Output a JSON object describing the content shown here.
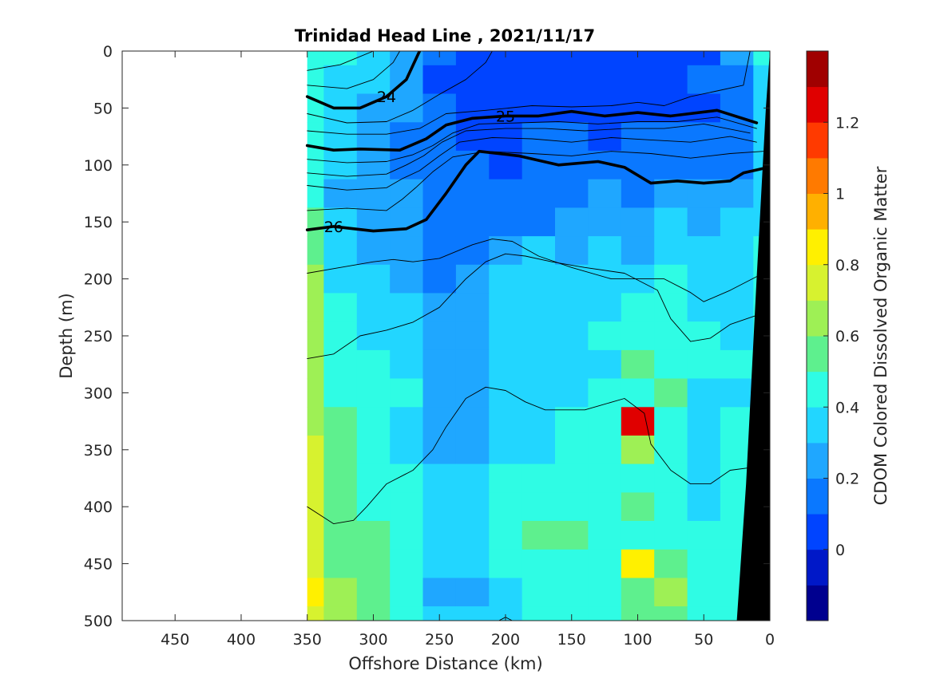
{
  "chart_data": {
    "type": "heatmap",
    "title": "Trinidad Head Line , 2021/11/17",
    "xlabel": "Offshore Distance (km)",
    "ylabel": "Depth (m)",
    "colorbar_label": "CDOM Colored Dissolved Organic Matter",
    "x_reversed": true,
    "y_reversed": true,
    "xlim": [
      0,
      490
    ],
    "ylim": [
      0,
      500
    ],
    "x_ticks": [
      {
        "value": 450,
        "label": "450"
      },
      {
        "value": 400,
        "label": "400"
      },
      {
        "value": 350,
        "label": "350"
      },
      {
        "value": 300,
        "label": "300"
      },
      {
        "value": 250,
        "label": "250"
      },
      {
        "value": 200,
        "label": "200"
      },
      {
        "value": 150,
        "label": "150"
      },
      {
        "value": 100,
        "label": "100"
      },
      {
        "value": 50,
        "label": "50"
      },
      {
        "value": 0,
        "label": "0"
      }
    ],
    "y_ticks": [
      {
        "value": 0,
        "label": "0"
      },
      {
        "value": 50,
        "label": "50"
      },
      {
        "value": 100,
        "label": "100"
      },
      {
        "value": 150,
        "label": "150"
      },
      {
        "value": 200,
        "label": "200"
      },
      {
        "value": 250,
        "label": "250"
      },
      {
        "value": 300,
        "label": "300"
      },
      {
        "value": 350,
        "label": "350"
      },
      {
        "value": 400,
        "label": "400"
      },
      {
        "value": 450,
        "label": "450"
      },
      {
        "value": 500,
        "label": "500"
      }
    ],
    "colorbar_range": [
      -0.2,
      1.4
    ],
    "colorbar_ticks": [
      {
        "value": 0,
        "label": "0"
      },
      {
        "value": 0.2,
        "label": "0.2"
      },
      {
        "value": 0.4,
        "label": "0.4"
      },
      {
        "value": 0.6,
        "label": "0.6"
      },
      {
        "value": 0.8,
        "label": "0.8"
      },
      {
        "value": 1,
        "label": "1"
      },
      {
        "value": 1.2,
        "label": "1.2"
      }
    ],
    "colorbar_levels": [
      "#00008f",
      "#0018c8",
      "#0044ff",
      "#0a78ff",
      "#1fa7ff",
      "#22d6ff",
      "#2ffce4",
      "#5ef08e",
      "#9ef055",
      "#d7f22f",
      "#fff000",
      "#ffb000",
      "#ff7a00",
      "#ff3a00",
      "#e00000",
      "#a00000"
    ],
    "section_x_range": [
      0,
      350
    ],
    "grid_x": [
      350,
      325,
      300,
      275,
      250,
      225,
      200,
      175,
      150,
      125,
      100,
      75,
      50,
      25,
      0
    ],
    "grid_depth": [
      0,
      25,
      50,
      75,
      100,
      125,
      150,
      175,
      200,
      225,
      250,
      275,
      300,
      325,
      350,
      375,
      400,
      425,
      450,
      475,
      500
    ],
    "cdom_rows": [
      [
        0.45,
        0.4,
        0.38,
        0.25,
        0.1,
        0.05,
        0.05,
        0.05,
        0.05,
        0.05,
        0.08,
        0.08,
        0.05,
        0.2,
        0.4
      ],
      [
        0.42,
        0.35,
        0.3,
        0.2,
        0.08,
        0.05,
        0.05,
        0.05,
        0.05,
        0.05,
        0.05,
        0.08,
        0.1,
        0.1,
        0.35
      ],
      [
        0.4,
        0.32,
        0.28,
        0.2,
        0.1,
        0.05,
        0.05,
        0.05,
        0.05,
        0.05,
        0.05,
        0.05,
        0.08,
        0.1,
        0.3
      ],
      [
        0.4,
        0.3,
        0.22,
        0.15,
        0.1,
        0.08,
        0.05,
        0.1,
        0.1,
        0.08,
        0.1,
        0.15,
        0.1,
        0.12,
        0.3
      ],
      [
        0.42,
        0.3,
        0.2,
        0.18,
        0.1,
        0.1,
        0.05,
        0.1,
        0.15,
        0.18,
        0.15,
        0.12,
        0.15,
        0.15,
        0.35
      ],
      [
        0.45,
        0.28,
        0.22,
        0.2,
        0.12,
        0.15,
        0.15,
        0.15,
        0.18,
        0.2,
        0.18,
        0.2,
        0.22,
        0.25,
        0.35
      ],
      [
        0.5,
        0.3,
        0.22,
        0.2,
        0.12,
        0.15,
        0.18,
        0.18,
        0.2,
        0.22,
        0.25,
        0.3,
        0.28,
        0.3,
        0.38
      ],
      [
        0.55,
        0.35,
        0.25,
        0.25,
        0.12,
        0.15,
        0.22,
        0.3,
        0.28,
        0.3,
        0.28,
        0.32,
        0.35,
        0.3,
        0.4
      ],
      [
        0.6,
        0.38,
        0.3,
        0.28,
        0.18,
        0.2,
        0.3,
        0.35,
        0.3,
        0.32,
        0.35,
        0.4,
        0.35,
        0.3,
        0.4
      ],
      [
        0.62,
        0.45,
        0.35,
        0.3,
        0.22,
        0.22,
        0.35,
        0.38,
        0.35,
        0.35,
        0.4,
        0.4,
        0.38,
        0.35,
        0.42
      ],
      [
        0.62,
        0.45,
        0.38,
        0.3,
        0.2,
        0.22,
        0.3,
        0.35,
        0.35,
        0.4,
        0.45,
        0.45,
        0.4,
        0.38,
        0.42
      ],
      [
        0.65,
        0.45,
        0.4,
        0.38,
        0.2,
        0.2,
        0.3,
        0.35,
        0.35,
        0.38,
        0.58,
        0.42,
        0.4,
        0.4,
        0.42
      ],
      [
        0.68,
        0.48,
        0.4,
        0.4,
        0.22,
        0.25,
        0.3,
        0.35,
        0.38,
        0.4,
        0.48,
        0.5,
        0.35,
        0.38,
        0.42
      ],
      [
        0.68,
        0.5,
        0.4,
        0.38,
        0.25,
        0.2,
        0.3,
        0.35,
        0.4,
        0.42,
        1.25,
        0.45,
        0.38,
        0.4,
        0.42
      ],
      [
        0.7,
        0.5,
        0.4,
        0.35,
        0.25,
        0.22,
        0.32,
        0.38,
        0.4,
        0.45,
        0.62,
        0.45,
        0.35,
        0.4,
        0.42
      ],
      [
        0.78,
        0.55,
        0.42,
        0.4,
        0.35,
        0.35,
        0.4,
        0.4,
        0.42,
        0.4,
        0.48,
        0.45,
        0.38,
        0.4,
        0.42
      ],
      [
        0.7,
        0.55,
        0.45,
        0.45,
        0.38,
        0.35,
        0.4,
        0.42,
        0.4,
        0.42,
        0.5,
        0.45,
        0.38,
        0.4,
        0.42
      ],
      [
        0.72,
        0.58,
        0.5,
        0.48,
        0.38,
        0.35,
        0.45,
        0.5,
        0.55,
        0.4,
        0.48,
        0.45,
        0.4,
        0.42,
        0.42
      ],
      [
        0.75,
        0.58,
        0.52,
        0.45,
        0.3,
        0.32,
        0.4,
        0.45,
        0.45,
        0.42,
        0.8,
        0.5,
        0.4,
        0.42,
        0.42
      ],
      [
        0.8,
        0.6,
        0.5,
        0.45,
        0.28,
        0.25,
        0.35,
        0.4,
        0.4,
        0.4,
        0.55,
        0.6,
        0.45,
        0.42,
        0.42
      ],
      [
        0.7,
        0.6,
        0.5,
        0.45,
        0.35,
        0.3,
        0.35,
        0.4,
        0.42,
        0.45,
        0.5,
        0.5,
        0.45,
        0.42,
        0.42
      ]
    ],
    "density_contours": [
      {
        "level": 24,
        "label": "24",
        "bold": true,
        "points": [
          [
            350,
            40
          ],
          [
            330,
            50
          ],
          [
            310,
            50
          ],
          [
            290,
            40
          ],
          [
            275,
            25
          ],
          [
            265,
            0
          ]
        ]
      },
      {
        "level": 25,
        "label": "25",
        "bold": true,
        "points": [
          [
            350,
            83
          ],
          [
            330,
            87
          ],
          [
            310,
            86
          ],
          [
            280,
            87
          ],
          [
            260,
            77
          ],
          [
            245,
            65
          ],
          [
            225,
            59
          ],
          [
            200,
            57
          ],
          [
            175,
            57
          ],
          [
            150,
            53
          ],
          [
            125,
            57
          ],
          [
            100,
            54
          ],
          [
            75,
            57
          ],
          [
            40,
            52
          ],
          [
            10,
            63
          ]
        ]
      },
      {
        "level": 26,
        "label": "26",
        "bold": true,
        "points": [
          [
            350,
            157
          ],
          [
            330,
            154
          ],
          [
            300,
            158
          ],
          [
            275,
            156
          ],
          [
            260,
            148
          ],
          [
            245,
            125
          ],
          [
            230,
            100
          ],
          [
            220,
            88
          ],
          [
            190,
            92
          ],
          [
            160,
            100
          ],
          [
            130,
            97
          ],
          [
            110,
            102
          ],
          [
            90,
            116
          ],
          [
            70,
            114
          ],
          [
            50,
            116
          ],
          [
            30,
            114
          ],
          [
            20,
            107
          ],
          [
            5,
            103
          ]
        ]
      },
      {
        "level": 24.2,
        "bold": false,
        "points": [
          [
            350,
            17
          ],
          [
            325,
            12
          ],
          [
            300,
            0
          ]
        ]
      },
      {
        "level": 24.4,
        "bold": false,
        "points": [
          [
            350,
            30
          ],
          [
            320,
            33
          ],
          [
            300,
            25
          ],
          [
            285,
            10
          ],
          [
            280,
            0
          ]
        ]
      },
      {
        "level": 24.6,
        "bold": false,
        "points": [
          [
            350,
            55
          ],
          [
            320,
            63
          ],
          [
            290,
            62
          ],
          [
            270,
            52
          ],
          [
            250,
            38
          ],
          [
            230,
            25
          ],
          [
            215,
            10
          ],
          [
            210,
            0
          ]
        ]
      },
      {
        "level": 24.8,
        "bold": false,
        "points": [
          [
            350,
            70
          ],
          [
            320,
            73
          ],
          [
            290,
            73
          ],
          [
            265,
            68
          ],
          [
            245,
            55
          ],
          [
            215,
            52
          ],
          [
            180,
            48
          ],
          [
            150,
            49
          ],
          [
            120,
            48
          ],
          [
            100,
            45
          ],
          [
            80,
            48
          ],
          [
            60,
            40
          ],
          [
            40,
            35
          ],
          [
            20,
            30
          ],
          [
            15,
            0
          ]
        ]
      },
      {
        "level": 25.2,
        "bold": false,
        "points": [
          [
            350,
            95
          ],
          [
            320,
            98
          ],
          [
            290,
            97
          ],
          [
            270,
            91
          ],
          [
            255,
            83
          ],
          [
            240,
            72
          ],
          [
            220,
            64
          ],
          [
            190,
            63
          ],
          [
            160,
            62
          ],
          [
            130,
            64
          ],
          [
            100,
            62
          ],
          [
            70,
            62
          ],
          [
            40,
            58
          ],
          [
            10,
            68
          ]
        ]
      },
      {
        "level": 25.4,
        "bold": false,
        "points": [
          [
            350,
            107
          ],
          [
            320,
            110
          ],
          [
            290,
            108
          ],
          [
            275,
            100
          ],
          [
            262,
            92
          ],
          [
            248,
            80
          ],
          [
            230,
            70
          ],
          [
            200,
            68
          ],
          [
            170,
            68
          ],
          [
            140,
            70
          ],
          [
            110,
            68
          ],
          [
            80,
            68
          ],
          [
            50,
            64
          ],
          [
            15,
            72
          ]
        ]
      },
      {
        "level": 25.6,
        "bold": false,
        "points": [
          [
            350,
            118
          ],
          [
            320,
            122
          ],
          [
            290,
            120
          ],
          [
            278,
            112
          ],
          [
            265,
            105
          ],
          [
            250,
            92
          ],
          [
            235,
            80
          ],
          [
            210,
            76
          ],
          [
            180,
            77
          ],
          [
            150,
            80
          ],
          [
            120,
            76
          ],
          [
            90,
            78
          ],
          [
            60,
            80
          ],
          [
            30,
            75
          ],
          [
            10,
            80
          ]
        ]
      },
      {
        "level": 25.8,
        "bold": false,
        "points": [
          [
            350,
            140
          ],
          [
            320,
            138
          ],
          [
            290,
            140
          ],
          [
            278,
            130
          ],
          [
            268,
            120
          ],
          [
            255,
            106
          ],
          [
            240,
            93
          ],
          [
            215,
            88
          ],
          [
            180,
            90
          ],
          [
            150,
            92
          ],
          [
            120,
            88
          ],
          [
            90,
            90
          ],
          [
            60,
            94
          ],
          [
            30,
            90
          ],
          [
            5,
            88
          ]
        ]
      },
      {
        "level": 26.2,
        "bold": false,
        "points": [
          [
            350,
            195
          ],
          [
            325,
            190
          ],
          [
            300,
            185
          ],
          [
            285,
            183
          ],
          [
            270,
            185
          ],
          [
            250,
            182
          ],
          [
            225,
            170
          ],
          [
            210,
            165
          ],
          [
            195,
            167
          ],
          [
            175,
            180
          ],
          [
            150,
            190
          ],
          [
            120,
            200
          ],
          [
            100,
            200
          ],
          [
            80,
            200
          ],
          [
            60,
            212
          ],
          [
            50,
            220
          ],
          [
            30,
            210
          ],
          [
            5,
            195
          ]
        ]
      },
      {
        "level": 26.4,
        "bold": false,
        "points": [
          [
            350,
            270
          ],
          [
            330,
            266
          ],
          [
            310,
            250
          ],
          [
            290,
            245
          ],
          [
            270,
            238
          ],
          [
            250,
            225
          ],
          [
            230,
            200
          ],
          [
            215,
            185
          ],
          [
            200,
            178
          ],
          [
            185,
            180
          ],
          [
            165,
            185
          ],
          [
            140,
            190
          ],
          [
            110,
            195
          ],
          [
            85,
            210
          ],
          [
            75,
            235
          ],
          [
            60,
            255
          ],
          [
            45,
            252
          ],
          [
            30,
            240
          ],
          [
            5,
            230
          ]
        ]
      },
      {
        "level": 26.6,
        "bold": false,
        "points": [
          [
            350,
            400
          ],
          [
            330,
            415
          ],
          [
            315,
            412
          ],
          [
            305,
            400
          ],
          [
            290,
            380
          ],
          [
            270,
            368
          ],
          [
            255,
            350
          ],
          [
            245,
            330
          ],
          [
            230,
            305
          ],
          [
            215,
            295
          ],
          [
            200,
            298
          ],
          [
            185,
            308
          ],
          [
            170,
            315
          ],
          [
            140,
            315
          ],
          [
            110,
            305
          ],
          [
            95,
            318
          ],
          [
            90,
            345
          ],
          [
            75,
            368
          ],
          [
            60,
            380
          ],
          [
            45,
            380
          ],
          [
            30,
            368
          ],
          [
            10,
            365
          ]
        ]
      },
      {
        "level": 26.7,
        "bold": false,
        "points": [
          [
            205,
            500
          ],
          [
            200,
            497
          ],
          [
            195,
            500
          ]
        ]
      }
    ]
  }
}
